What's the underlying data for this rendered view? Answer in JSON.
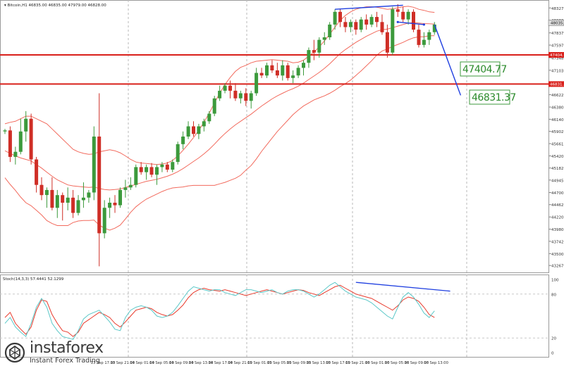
{
  "chart_data": [
    {
      "type": "candlestick",
      "header_text": "Bitcoin,H1  46835.00 46835.00 47979.00 46828.00",
      "x_labels": [
        "13 Sep 17:00",
        "13 Sep 21:00",
        "14 Sep 01:00",
        "14 Sep 05:00",
        "14 Sep 09:00",
        "14 Sep 13:00",
        "14 Sep 17:00",
        "14 Sep 21:00",
        "15 Sep 01:00",
        "15 Sep 05:00",
        "15 Sep 09:00",
        "15 Sep 13:00",
        "15 Sep 17:00",
        "15 Sep 21:00",
        "16 Sep 01:00",
        "16 Sep 05:00",
        "16 Sep 09:00",
        "16 Sep 13:00"
      ],
      "y_ticks": [
        48327.0,
        48086.0,
        47837.0,
        47597.0,
        47348.0,
        47103.0,
        46864.0,
        46622.0,
        46380.0,
        46140.0,
        45902.0,
        45661.0,
        45420.0,
        45182.0,
        44945.0,
        44700.0,
        44462.0,
        44220.0,
        43980.0,
        43742.0,
        43500.0,
        43267.0
      ],
      "ylim": [
        43200,
        48400
      ],
      "price_label": "48035.00",
      "levels": [
        {
          "value": 47404.77,
          "label": "47404.77",
          "axis_tag": "47404.77"
        },
        {
          "value": 46831.37,
          "label": "46831.37",
          "axis_tag": "46831.37"
        }
      ],
      "candles": [
        [
          45900,
          45950,
          45850,
          45920
        ],
        [
          45920,
          46000,
          45300,
          45400
        ],
        [
          45400,
          45600,
          45250,
          45500
        ],
        [
          45500,
          46150,
          45450,
          45900
        ],
        [
          45900,
          46300,
          45700,
          46150
        ],
        [
          46150,
          46250,
          45250,
          45350
        ],
        [
          45350,
          45400,
          44700,
          44850
        ],
        [
          44850,
          45000,
          44550,
          44650
        ],
        [
          44650,
          44800,
          44400,
          44750
        ],
        [
          44750,
          45000,
          44350,
          44400
        ],
        [
          44400,
          44750,
          44200,
          44650
        ],
        [
          44650,
          44700,
          44150,
          44500
        ],
        [
          44500,
          44800,
          44350,
          44600
        ],
        [
          44600,
          44750,
          44200,
          44300
        ],
        [
          44300,
          44650,
          44250,
          44550
        ],
        [
          44550,
          44900,
          44400,
          44600
        ],
        [
          44600,
          44750,
          44500,
          44700
        ],
        [
          44700,
          46000,
          44550,
          45800
        ],
        [
          45800,
          46650,
          43250,
          43900
        ],
        [
          43900,
          44550,
          43800,
          44400
        ],
        [
          44400,
          44600,
          44200,
          44500
        ],
        [
          44500,
          44650,
          44300,
          44450
        ],
        [
          44450,
          44800,
          44400,
          44750
        ],
        [
          44750,
          44950,
          44600,
          44800
        ],
        [
          44800,
          45000,
          44750,
          44850
        ],
        [
          44850,
          45250,
          44800,
          45200
        ],
        [
          45200,
          45300,
          45050,
          45100
        ],
        [
          45100,
          45250,
          44950,
          45200
        ],
        [
          45200,
          45280,
          45000,
          45050
        ],
        [
          45050,
          45250,
          44850,
          45200
        ],
        [
          45200,
          45300,
          45100,
          45250
        ],
        [
          45250,
          45300,
          45100,
          45150
        ],
        [
          45150,
          45350,
          45100,
          45300
        ],
        [
          45300,
          45700,
          45250,
          45650
        ],
        [
          45650,
          45900,
          45550,
          45800
        ],
        [
          45800,
          46100,
          45750,
          46000
        ],
        [
          46000,
          46100,
          45800,
          45850
        ],
        [
          45850,
          46050,
          45750,
          46000
        ],
        [
          46000,
          46150,
          45900,
          46100
        ],
        [
          46100,
          46300,
          46050,
          46250
        ],
        [
          46250,
          46600,
          46200,
          46550
        ],
        [
          46550,
          46800,
          46500,
          46700
        ],
        [
          46700,
          46850,
          46650,
          46800
        ],
        [
          46800,
          46900,
          46550,
          46700
        ],
        [
          46700,
          46850,
          46500,
          46550
        ],
        [
          46550,
          46700,
          46450,
          46650
        ],
        [
          46650,
          46750,
          46400,
          46500
        ],
        [
          46500,
          46700,
          46350,
          46650
        ],
        [
          46650,
          47150,
          46600,
          47050
        ],
        [
          47050,
          47150,
          46950,
          47000
        ],
        [
          47000,
          47250,
          46950,
          47200
        ],
        [
          47200,
          47300,
          47050,
          47100
        ],
        [
          47100,
          47250,
          46950,
          47000
        ],
        [
          47000,
          47300,
          46900,
          47200
        ],
        [
          47200,
          47250,
          46900,
          46950
        ],
        [
          46950,
          47100,
          46850,
          47000
        ],
        [
          47000,
          47200,
          46950,
          47150
        ],
        [
          47150,
          47300,
          47000,
          47250
        ],
        [
          47250,
          47550,
          47150,
          47500
        ],
        [
          47500,
          47700,
          47300,
          47450
        ],
        [
          47450,
          47750,
          47350,
          47700
        ],
        [
          47700,
          47850,
          47600,
          47750
        ],
        [
          47750,
          48050,
          47700,
          48000
        ],
        [
          48000,
          48300,
          47900,
          48250
        ],
        [
          48250,
          48300,
          47950,
          48050
        ],
        [
          48050,
          48150,
          47850,
          47950
        ],
        [
          47950,
          48100,
          47850,
          48050
        ],
        [
          48050,
          48100,
          47800,
          47900
        ],
        [
          47900,
          48150,
          47850,
          48100
        ],
        [
          48100,
          48200,
          47900,
          48000
        ],
        [
          48000,
          48200,
          47950,
          48150
        ],
        [
          48150,
          48250,
          47950,
          48050
        ],
        [
          48050,
          48200,
          47800,
          47850
        ],
        [
          47850,
          48000,
          47350,
          47450
        ],
        [
          47450,
          48350,
          47400,
          48300
        ],
        [
          48300,
          48400,
          48150,
          48250
        ],
        [
          48250,
          48350,
          48050,
          48100
        ],
        [
          48100,
          48300,
          48000,
          48250
        ],
        [
          48250,
          48300,
          47850,
          47900
        ],
        [
          47900,
          48000,
          47550,
          47600
        ],
        [
          47600,
          47850,
          47550,
          47700
        ],
        [
          47700,
          47900,
          47600,
          47850
        ],
        [
          47850,
          48050,
          47800,
          48000
        ]
      ],
      "bollinger": {
        "middle": [
          45520,
          45470,
          45420,
          45380,
          45350,
          45320,
          45250,
          45180,
          45100,
          45020,
          44950,
          44900,
          44850,
          44830,
          44820,
          44810,
          44800,
          44810,
          44780,
          44760,
          44750,
          44760,
          44770,
          44800,
          44830,
          44860,
          44890,
          44920,
          44940,
          44960,
          44990,
          45020,
          45060,
          45110,
          45170,
          45240,
          45310,
          45380,
          45460,
          45550,
          45650,
          45760,
          45860,
          45950,
          46030,
          46100,
          46170,
          46240,
          46320,
          46400,
          46470,
          46540,
          46600,
          46650,
          46700,
          46740,
          46790,
          46850,
          46920,
          46990,
          47060,
          47140,
          47230,
          47330,
          47430,
          47510,
          47580,
          47650,
          47710,
          47770,
          47820,
          47870,
          47900,
          47910,
          47940,
          47970,
          48000,
          48030,
          48040,
          48030,
          48020,
          48015,
          48010
        ],
        "upper": [
          46050,
          46080,
          46100,
          46150,
          46200,
          46200,
          46150,
          46100,
          46050,
          45950,
          45850,
          45750,
          45650,
          45550,
          45500,
          45470,
          45450,
          45460,
          45500,
          45520,
          45540,
          45520,
          45480,
          45420,
          45350,
          45300,
          45280,
          45270,
          45260,
          45250,
          45260,
          45280,
          45330,
          45420,
          45530,
          45650,
          45780,
          45920,
          46080,
          46260,
          46460,
          46650,
          46820,
          46960,
          47080,
          47160,
          47200,
          47250,
          47280,
          47290,
          47300,
          47310,
          47300,
          47290,
          47280,
          47250,
          47260,
          47300,
          47380,
          47460,
          47560,
          47680,
          47810,
          47950,
          48080,
          48180,
          48250,
          48300,
          48330,
          48350,
          48350,
          48340,
          48320,
          48300,
          48310,
          48330,
          48350,
          48360,
          48340,
          48300,
          48280,
          48250,
          48240
        ],
        "lower": [
          44990,
          44860,
          44740,
          44610,
          44500,
          44440,
          44350,
          44260,
          44150,
          44090,
          44050,
          44050,
          44050,
          44110,
          44140,
          44150,
          44150,
          44160,
          44060,
          44000,
          43960,
          44000,
          44060,
          44180,
          44310,
          44420,
          44500,
          44570,
          44620,
          44670,
          44720,
          44760,
          44790,
          44800,
          44810,
          44830,
          44840,
          44840,
          44840,
          44840,
          44840,
          44870,
          44900,
          44940,
          44980,
          45040,
          45140,
          45230,
          45360,
          45510,
          45640,
          45770,
          45900,
          46010,
          46120,
          46230,
          46320,
          46400,
          46460,
          46520,
          46560,
          46600,
          46650,
          46710,
          46780,
          46840,
          46910,
          47000,
          47090,
          47190,
          47290,
          47400,
          47480,
          47520,
          47570,
          47610,
          47650,
          47700,
          47740,
          47760,
          47760,
          47780,
          47780
        ]
      },
      "trendlines": [
        {
          "name": "resistance",
          "from": [
            63,
            48300
          ],
          "to": [
            76,
            48380
          ]
        },
        {
          "name": "short-top",
          "from": [
            75,
            48050
          ],
          "to": [
            80,
            48000
          ]
        },
        {
          "name": "projection",
          "from": [
            82,
            48000
          ],
          "to": [
            87,
            46610
          ]
        }
      ]
    },
    {
      "type": "line",
      "label": "Stoch(14,3,3) 57.4441 52.1299",
      "ylim": [
        0,
        100
      ],
      "y_ticks": [
        100,
        80,
        20,
        0
      ],
      "series": [
        {
          "color": "#e8392b",
          "values": [
            48,
            55,
            40,
            32,
            25,
            35,
            58,
            72,
            70,
            52,
            40,
            30,
            28,
            22,
            28,
            40,
            45,
            50,
            55,
            52,
            48,
            40,
            35,
            42,
            50,
            58,
            60,
            62,
            60,
            55,
            52,
            50,
            52,
            58,
            65,
            75,
            82,
            86,
            88,
            86,
            85,
            84,
            86,
            84,
            82,
            80,
            78,
            80,
            82,
            84,
            86,
            84,
            82,
            80,
            82,
            84,
            86,
            85,
            82,
            80,
            78,
            82,
            86,
            90,
            92,
            88,
            84,
            80,
            78,
            76,
            74,
            70,
            66,
            62,
            58,
            64,
            72,
            76,
            74,
            70,
            62,
            52,
            48
          ]
        },
        {
          "color": "#5bc8c8",
          "values": [
            40,
            48,
            35,
            28,
            22,
            40,
            62,
            74,
            62,
            40,
            30,
            22,
            20,
            18,
            30,
            46,
            52,
            55,
            58,
            50,
            42,
            32,
            30,
            48,
            58,
            62,
            64,
            62,
            58,
            50,
            48,
            50,
            55,
            64,
            74,
            84,
            90,
            88,
            86,
            84,
            86,
            86,
            82,
            80,
            78,
            82,
            86,
            86,
            84,
            82,
            84,
            86,
            82,
            80,
            84,
            86,
            86,
            84,
            80,
            76,
            80,
            86,
            92,
            96,
            90,
            84,
            80,
            76,
            74,
            72,
            68,
            62,
            56,
            50,
            46,
            62,
            76,
            82,
            76,
            66,
            54,
            48,
            57
          ]
        }
      ],
      "trendline": {
        "from": [
          67,
          96
        ],
        "to": [
          85,
          84
        ]
      }
    }
  ],
  "watermark": {
    "brand": "instaforex",
    "tagline": "Instant Forex Trading"
  }
}
